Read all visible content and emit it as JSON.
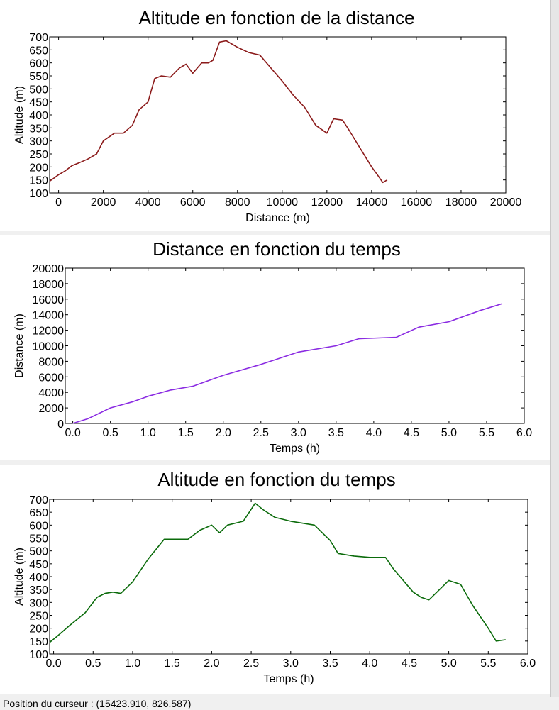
{
  "status_bar": {
    "label": "Position du curseur : (15423.910, 826.587)"
  },
  "colors": {
    "panel_bg": "#ffffff",
    "window_bg": "#f0f0f0"
  },
  "chart_data": [
    {
      "type": "line",
      "title": "Altitude en fonction de la distance",
      "xlabel": "Distance (m)",
      "ylabel": "Altitude (m)",
      "xlim": [
        -400,
        20000
      ],
      "ylim": [
        100,
        700
      ],
      "xticks": [
        0,
        2000,
        4000,
        6000,
        8000,
        10000,
        12000,
        14000,
        16000,
        18000,
        20000
      ],
      "yticks": [
        100,
        150,
        200,
        250,
        300,
        350,
        400,
        450,
        500,
        550,
        600,
        650,
        700
      ],
      "grid": false,
      "color": "#8b1a1a",
      "series": [
        {
          "x": [
            -400,
            0,
            300,
            600,
            900,
            1300,
            1700,
            2000,
            2500,
            2900,
            3300,
            3600,
            4000,
            4300,
            4600,
            5000,
            5400,
            5700,
            6000,
            6400,
            6700,
            6900,
            7200,
            7500,
            8000,
            8500,
            9000,
            9500,
            10000,
            10500,
            11000,
            11500,
            12000,
            12300,
            12700,
            13000,
            13500,
            14000,
            14300,
            14500,
            14700
          ],
          "y": [
            145,
            170,
            185,
            205,
            215,
            230,
            250,
            300,
            330,
            330,
            360,
            420,
            450,
            540,
            550,
            545,
            580,
            595,
            560,
            600,
            600,
            610,
            680,
            685,
            660,
            640,
            630,
            580,
            530,
            475,
            430,
            360,
            330,
            385,
            380,
            340,
            270,
            200,
            165,
            140,
            150
          ]
        }
      ]
    },
    {
      "type": "line",
      "title": "Distance en fonction du temps",
      "xlabel": "Temps (h)",
      "ylabel": "Distance (m)",
      "xlim": [
        -0.1,
        6.0
      ],
      "ylim": [
        0,
        20000
      ],
      "xticks": [
        0.0,
        0.5,
        1.0,
        1.5,
        2.0,
        2.5,
        3.0,
        3.5,
        4.0,
        4.5,
        5.0,
        5.5,
        6.0
      ],
      "yticks": [
        0,
        2000,
        4000,
        6000,
        8000,
        10000,
        12000,
        14000,
        16000,
        18000,
        20000
      ],
      "grid": false,
      "color": "#8a2be2",
      "series": [
        {
          "x": [
            0.0,
            0.2,
            0.5,
            0.8,
            1.0,
            1.3,
            1.6,
            2.0,
            2.5,
            3.0,
            3.5,
            3.8,
            4.3,
            4.6,
            5.0,
            5.4,
            5.7
          ],
          "y": [
            0,
            600,
            2000,
            2800,
            3500,
            4300,
            4800,
            6200,
            7600,
            9200,
            10000,
            10900,
            11100,
            12400,
            13100,
            14500,
            15400
          ]
        }
      ]
    },
    {
      "type": "line",
      "title": "Altitude en fonction du temps",
      "xlabel": "Temps (h)",
      "ylabel": "Altitude (m)",
      "xlim": [
        -0.05,
        6.0
      ],
      "ylim": [
        100,
        700
      ],
      "xticks": [
        0.0,
        0.5,
        1.0,
        1.5,
        2.0,
        2.5,
        3.0,
        3.5,
        4.0,
        4.5,
        5.0,
        5.5,
        6.0
      ],
      "yticks": [
        100,
        150,
        200,
        250,
        300,
        350,
        400,
        450,
        500,
        550,
        600,
        650,
        700
      ],
      "grid": false,
      "color": "#0b6b0b",
      "series": [
        {
          "x": [
            -0.05,
            0.05,
            0.2,
            0.4,
            0.55,
            0.65,
            0.75,
            0.85,
            1.0,
            1.2,
            1.4,
            1.55,
            1.7,
            1.85,
            2.0,
            2.1,
            2.2,
            2.4,
            2.55,
            2.65,
            2.8,
            3.0,
            3.3,
            3.5,
            3.6,
            3.8,
            4.0,
            4.2,
            4.3,
            4.55,
            4.65,
            4.75,
            4.85,
            5.0,
            5.15,
            5.3,
            5.5,
            5.6,
            5.72
          ],
          "y": [
            145,
            170,
            210,
            260,
            320,
            335,
            340,
            335,
            380,
            470,
            545,
            545,
            545,
            580,
            600,
            570,
            600,
            615,
            685,
            660,
            630,
            615,
            600,
            540,
            490,
            480,
            475,
            475,
            430,
            340,
            320,
            310,
            340,
            385,
            370,
            290,
            200,
            150,
            155
          ]
        }
      ]
    }
  ]
}
